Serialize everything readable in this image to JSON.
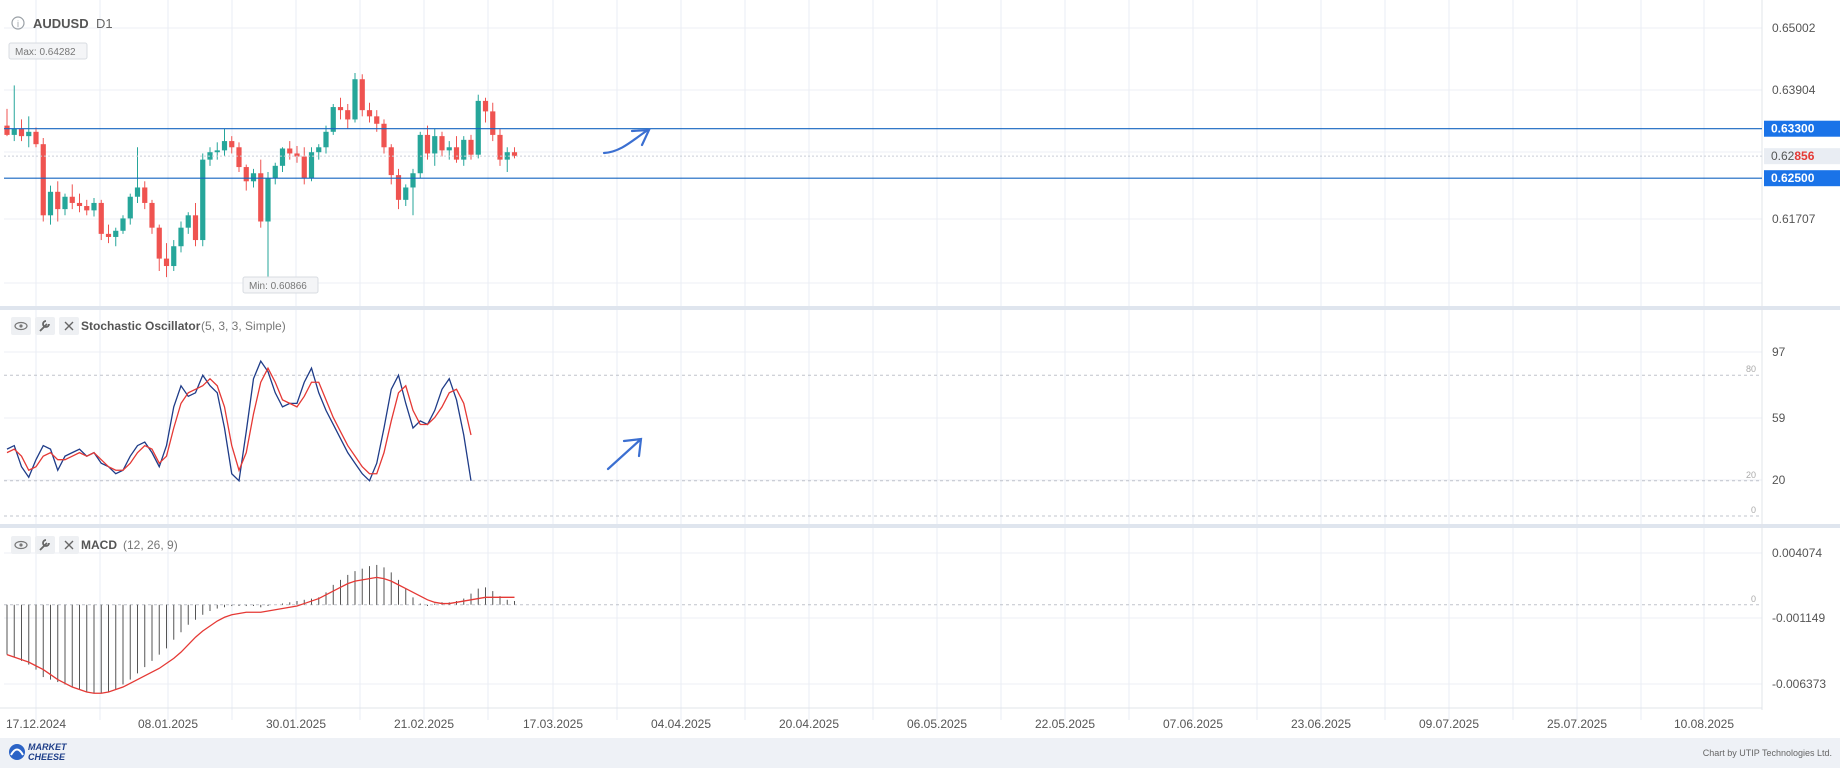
{
  "header": {
    "symbol": "AUDUSD",
    "timeframe": "D1"
  },
  "footer": {
    "logo_line1": "MARKET",
    "logo_line2": "CHEESE",
    "credit": "Chart by UTIP Technologies Ltd."
  },
  "colors": {
    "up": "#26a69a",
    "down": "#ef5350",
    "blue_line": "#1565c0",
    "signal": "#e53935",
    "accent": "#1a73e8"
  },
  "chart_data": [
    {
      "type": "candlestick",
      "title": "AUDUSD D1",
      "x_dates": [
        "17.12.2024",
        "08.01.2025",
        "30.01.2025",
        "21.02.2025",
        "17.03.2025",
        "04.04.2025",
        "20.04.2025",
        "06.05.2025",
        "22.05.2025",
        "07.06.2025",
        "23.06.2025",
        "09.07.2025",
        "25.07.2025",
        "10.08.2025"
      ],
      "y_ticks": [
        "0.65002",
        "0.63904",
        "0.61707"
      ],
      "ylim": [
        0.6045,
        0.653
      ],
      "max_label": "Max: 0.64282",
      "min_label": "Min: 0.60866",
      "horizontal_lines": [
        {
          "value": 0.633,
          "label": "0.63300"
        },
        {
          "value": 0.625,
          "label": "0.62500"
        }
      ],
      "current_price": {
        "value": 0.62856,
        "prefix": "0.62",
        "suffix": "856"
      },
      "candles": [
        [
          0.6335,
          0.6362,
          0.6318,
          0.632
        ],
        [
          0.632,
          0.64,
          0.631,
          0.633
        ],
        [
          0.633,
          0.6345,
          0.631,
          0.6318
        ],
        [
          0.6318,
          0.635,
          0.63,
          0.6325
        ],
        [
          0.6325,
          0.6332,
          0.63,
          0.6305
        ],
        [
          0.6305,
          0.6315,
          0.618,
          0.619
        ],
        [
          0.619,
          0.6238,
          0.6175,
          0.6228
        ],
        [
          0.6228,
          0.6245,
          0.618,
          0.62
        ],
        [
          0.62,
          0.6225,
          0.619,
          0.622
        ],
        [
          0.622,
          0.624,
          0.62,
          0.621
        ],
        [
          0.621,
          0.6225,
          0.6195,
          0.6205
        ],
        [
          0.6205,
          0.6215,
          0.619,
          0.6198
        ],
        [
          0.6198,
          0.6218,
          0.6188,
          0.621
        ],
        [
          0.621,
          0.6215,
          0.615,
          0.616
        ],
        [
          0.616,
          0.6175,
          0.6145,
          0.6155
        ],
        [
          0.6155,
          0.617,
          0.614,
          0.6165
        ],
        [
          0.6165,
          0.619,
          0.616,
          0.6185
        ],
        [
          0.6185,
          0.6225,
          0.6175,
          0.622
        ],
        [
          0.622,
          0.63,
          0.621,
          0.6235
        ],
        [
          0.6235,
          0.6245,
          0.62,
          0.621
        ],
        [
          0.621,
          0.6215,
          0.616,
          0.617
        ],
        [
          0.617,
          0.6175,
          0.61,
          0.612
        ],
        [
          0.612,
          0.6145,
          0.609,
          0.6108
        ],
        [
          0.6108,
          0.615,
          0.61,
          0.614
        ],
        [
          0.614,
          0.618,
          0.613,
          0.617
        ],
        [
          0.617,
          0.6195,
          0.616,
          0.619
        ],
        [
          0.619,
          0.621,
          0.614,
          0.615
        ],
        [
          0.615,
          0.629,
          0.614,
          0.628
        ],
        [
          0.628,
          0.63,
          0.627,
          0.6292
        ],
        [
          0.6292,
          0.6308,
          0.628,
          0.6295
        ],
        [
          0.6295,
          0.633,
          0.6285,
          0.631
        ],
        [
          0.631,
          0.6318,
          0.629,
          0.63
        ],
        [
          0.63,
          0.6308,
          0.626,
          0.6268
        ],
        [
          0.6268,
          0.6272,
          0.623,
          0.6245
        ],
        [
          0.6245,
          0.6265,
          0.6235,
          0.6258
        ],
        [
          0.6258,
          0.628,
          0.617,
          0.618
        ],
        [
          0.618,
          0.626,
          0.6087,
          0.625
        ],
        [
          0.625,
          0.6275,
          0.624,
          0.627
        ],
        [
          0.627,
          0.63,
          0.626,
          0.6298
        ],
        [
          0.6298,
          0.631,
          0.628,
          0.629
        ],
        [
          0.629,
          0.6302,
          0.6275,
          0.6285
        ],
        [
          0.6285,
          0.63,
          0.624,
          0.625
        ],
        [
          0.625,
          0.63,
          0.6245,
          0.6292
        ],
        [
          0.6292,
          0.6305,
          0.628,
          0.63
        ],
        [
          0.63,
          0.6335,
          0.629,
          0.6325
        ],
        [
          0.6325,
          0.637,
          0.632,
          0.6365
        ],
        [
          0.6365,
          0.638,
          0.6345,
          0.636
        ],
        [
          0.636,
          0.637,
          0.633,
          0.6345
        ],
        [
          0.6345,
          0.642,
          0.634,
          0.641
        ],
        [
          0.641,
          0.6418,
          0.635,
          0.636
        ],
        [
          0.636,
          0.6372,
          0.634,
          0.635
        ],
        [
          0.635,
          0.636,
          0.6325,
          0.6338
        ],
        [
          0.6338,
          0.6345,
          0.629,
          0.63
        ],
        [
          0.63,
          0.6305,
          0.624,
          0.6255
        ],
        [
          0.6255,
          0.6265,
          0.62,
          0.6215
        ],
        [
          0.6215,
          0.624,
          0.6205,
          0.6235
        ],
        [
          0.6235,
          0.6265,
          0.619,
          0.6258
        ],
        [
          0.6258,
          0.6325,
          0.625,
          0.632
        ],
        [
          0.632,
          0.6335,
          0.628,
          0.629
        ],
        [
          0.629,
          0.633,
          0.627,
          0.6318
        ],
        [
          0.6318,
          0.6325,
          0.6285,
          0.6295
        ],
        [
          0.6295,
          0.631,
          0.628,
          0.63
        ],
        [
          0.63,
          0.6318,
          0.6275,
          0.628
        ],
        [
          0.628,
          0.6318,
          0.627,
          0.6312
        ],
        [
          0.6312,
          0.632,
          0.628,
          0.6288
        ],
        [
          0.6288,
          0.6385,
          0.6282,
          0.6375
        ],
        [
          0.6375,
          0.638,
          0.634,
          0.6358
        ],
        [
          0.6358,
          0.6372,
          0.631,
          0.632
        ],
        [
          0.632,
          0.633,
          0.627,
          0.628
        ],
        [
          0.628,
          0.63,
          0.626,
          0.6292
        ],
        [
          0.6292,
          0.63,
          0.6282,
          0.6286
        ]
      ]
    },
    {
      "type": "line",
      "title": "Stochastic Oscillator",
      "params": "(5, 3, 3, Simple)",
      "y_ticks": [
        "97",
        "59",
        "20"
      ],
      "levels": [
        {
          "value": 80,
          "label": "80"
        },
        {
          "value": 20,
          "label": "20"
        },
        {
          "value": 0,
          "label": "0"
        }
      ],
      "ylim": [
        0,
        100
      ],
      "series": [
        {
          "name": "%K",
          "values": [
            38,
            40,
            28,
            22,
            32,
            40,
            38,
            26,
            34,
            36,
            38,
            34,
            36,
            30,
            28,
            24,
            26,
            34,
            40,
            42,
            36,
            28,
            40,
            62,
            74,
            68,
            70,
            80,
            74,
            70,
            50,
            24,
            20,
            48,
            78,
            88,
            82,
            70,
            62,
            64,
            64,
            76,
            84,
            70,
            60,
            52,
            44,
            36,
            30,
            24,
            20,
            30,
            50,
            72,
            80,
            64,
            50,
            54,
            52,
            60,
            72,
            78,
            66,
            46,
            20
          ]
        },
        {
          "name": "%D",
          "values": [
            36,
            38,
            34,
            26,
            28,
            34,
            36,
            32,
            32,
            34,
            36,
            34,
            36,
            32,
            28,
            26,
            26,
            30,
            36,
            40,
            38,
            30,
            34,
            50,
            64,
            70,
            72,
            74,
            78,
            74,
            62,
            40,
            26,
            36,
            58,
            76,
            84,
            76,
            66,
            64,
            62,
            68,
            76,
            76,
            66,
            56,
            48,
            40,
            34,
            28,
            24,
            24,
            36,
            54,
            70,
            74,
            60,
            52,
            52,
            56,
            62,
            70,
            72,
            64,
            46
          ]
        }
      ]
    },
    {
      "type": "bar",
      "title": "MACD",
      "params": "(12, 26, 9)",
      "y_ticks": [
        "0.004074",
        "-0.001149",
        "-0.006373"
      ],
      "zero_label": "0",
      "ylim": [
        -0.0078,
        0.0052
      ],
      "histogram": [
        -0.004,
        -0.0042,
        -0.0045,
        -0.0048,
        -0.0052,
        -0.0058,
        -0.006,
        -0.0062,
        -0.0064,
        -0.0066,
        -0.0068,
        -0.007,
        -0.0071,
        -0.0071,
        -0.007,
        -0.0068,
        -0.0064,
        -0.006,
        -0.0055,
        -0.005,
        -0.0045,
        -0.004,
        -0.0035,
        -0.0028,
        -0.0022,
        -0.0016,
        -0.0012,
        -0.0008,
        -0.0005,
        -0.0003,
        -0.0002,
        -0.0001,
        -0.0001,
        -0.0001,
        -0.0001,
        -0.0002,
        -0.0001,
        0.0,
        0.0001,
        0.0002,
        0.0003,
        0.0004,
        0.0005,
        0.0006,
        0.001,
        0.0016,
        0.002,
        0.0024,
        0.0027,
        0.0029,
        0.0031,
        0.0032,
        0.003,
        0.0026,
        0.002,
        0.0013,
        0.0006,
        0.0001,
        -0.0001,
        0.0001,
        0.0002,
        0.0002,
        0.0003,
        0.0005,
        0.0009,
        0.0013,
        0.0014,
        0.0011,
        0.0007,
        0.0004,
        0.0003
      ],
      "signal": [
        -0.004,
        -0.0042,
        -0.0044,
        -0.0046,
        -0.0049,
        -0.0052,
        -0.0056,
        -0.006,
        -0.0063,
        -0.0066,
        -0.0068,
        -0.007,
        -0.0071,
        -0.0071,
        -0.007,
        -0.0068,
        -0.0066,
        -0.0063,
        -0.006,
        -0.0057,
        -0.0054,
        -0.0051,
        -0.0047,
        -0.0043,
        -0.0038,
        -0.0032,
        -0.0026,
        -0.0021,
        -0.0017,
        -0.0013,
        -0.001,
        -0.0008,
        -0.0007,
        -0.0006,
        -0.0006,
        -0.0006,
        -0.0005,
        -0.0004,
        -0.0003,
        -0.0002,
        -0.0001,
        0.0001,
        0.0003,
        0.0005,
        0.0008,
        0.0011,
        0.0014,
        0.0017,
        0.0019,
        0.002,
        0.0021,
        0.0022,
        0.0021,
        0.0019,
        0.0016,
        0.0013,
        0.001,
        0.0007,
        0.0004,
        0.0002,
        0.0001,
        0.0001,
        0.0002,
        0.0003,
        0.0004,
        0.0005,
        0.0006,
        0.0006,
        0.0006,
        0.0006,
        0.0006
      ]
    }
  ]
}
